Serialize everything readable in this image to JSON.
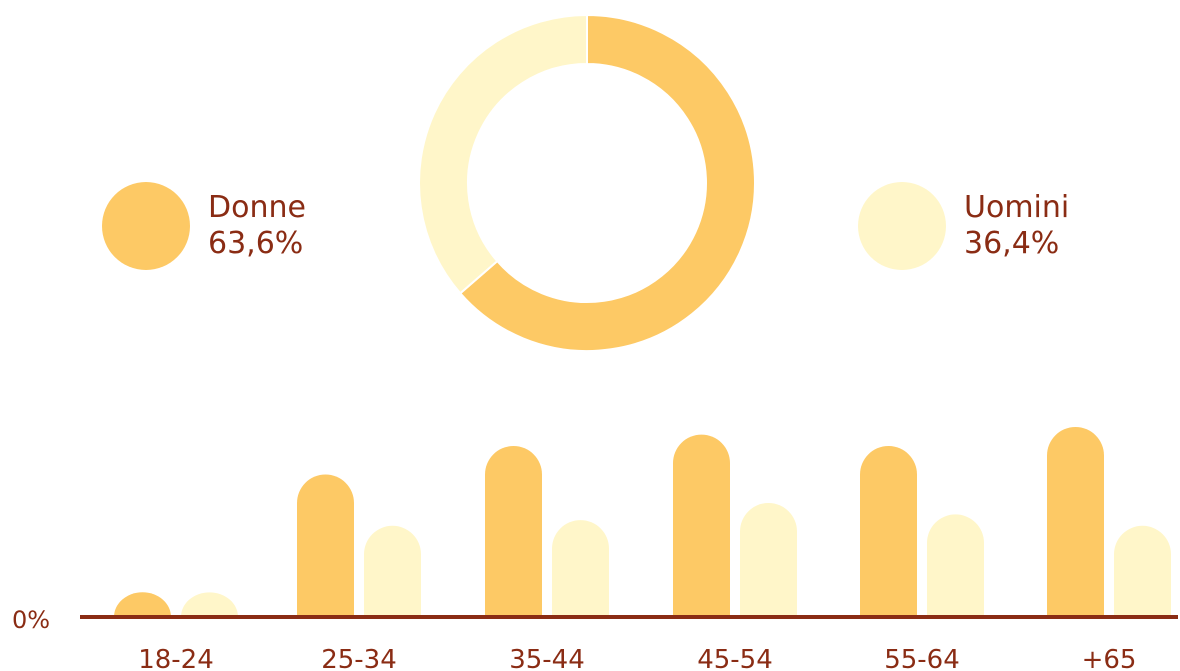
{
  "colors": {
    "donne": "#fdc965",
    "uomini": "#fff6c9",
    "axis": "#8a2c14",
    "text": "#8a2c14"
  },
  "legend": {
    "donne": {
      "label": "Donne",
      "value": "63,6%"
    },
    "uomini": {
      "label": "Uomini",
      "value": "36,4%"
    }
  },
  "chart_data": [
    {
      "type": "pie",
      "variant": "donut",
      "series": [
        {
          "name": "Donne",
          "value": 63.6,
          "color": "#fdc965"
        },
        {
          "name": "Uomini",
          "value": 36.4,
          "color": "#fff6c9"
        }
      ]
    },
    {
      "type": "bar",
      "categories": [
        "18-24",
        "25-34",
        "35-44",
        "45-54",
        "55-64",
        "+65"
      ],
      "series": [
        {
          "name": "Donne",
          "color": "#fdc965",
          "values": [
            0.13,
            0.75,
            0.9,
            0.96,
            0.9,
            1.0
          ]
        },
        {
          "name": "Uomini",
          "color": "#fff6c9",
          "values": [
            0.13,
            0.48,
            0.51,
            0.6,
            0.54,
            0.48
          ]
        }
      ],
      "y_axis_label": "0%",
      "ylim": [
        0,
        1.0
      ],
      "grid": false
    }
  ]
}
